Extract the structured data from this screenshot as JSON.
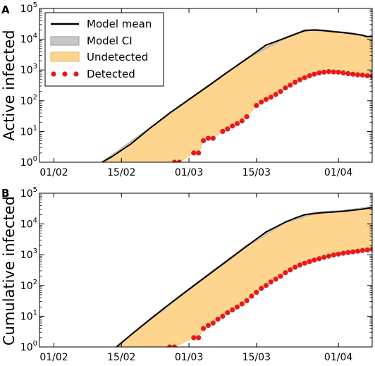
{
  "colors": {
    "mean": "#000000",
    "ci": "#c8c8c8",
    "undetected": "#fdd58e",
    "detected": "#e41a1c"
  },
  "legend": [
    {
      "label": "Model mean",
      "style": "line"
    },
    {
      "label": "Model CI",
      "style": "band"
    },
    {
      "label": "Undetected",
      "style": "fill"
    },
    {
      "label": "Detected",
      "style": "dots"
    }
  ],
  "chart_data": [
    {
      "panel": "A",
      "type": "area",
      "ylabel": "Active infected",
      "xticks": [
        "01/02",
        "15/02",
        "01/03",
        "15/03",
        "01/04"
      ],
      "xtick_days": [
        0,
        14,
        28,
        42,
        59
      ],
      "xlim_days": [
        -3,
        66
      ],
      "yscale": "log",
      "ylim": [
        1,
        100000
      ],
      "ytick_labels": [
        "10^0",
        "10^1",
        "10^2",
        "10^3",
        "10^4",
        "10^5"
      ],
      "model_mean": {
        "x_days": [
          10,
          12,
          16,
          20,
          24,
          28,
          32,
          36,
          40,
          44,
          48,
          50,
          52,
          54,
          56,
          58,
          60,
          62,
          64,
          65,
          66
        ],
        "y": [
          1,
          1.5,
          4,
          13,
          40,
          110,
          300,
          850,
          2300,
          6500,
          11000,
          14500,
          19000,
          20000,
          19000,
          17500,
          16500,
          15000,
          13500,
          12000,
          12500
        ]
      },
      "model_ci": {
        "x_days": [
          10,
          20,
          30,
          40,
          48,
          52,
          54,
          58,
          62,
          65,
          66
        ],
        "low": [
          1,
          12.5,
          170,
          2250,
          10500,
          18000,
          19000,
          16800,
          14300,
          11400,
          11800
        ],
        "high": [
          1.05,
          13.8,
          195,
          2500,
          11800,
          20500,
          21500,
          18800,
          16000,
          12800,
          13300
        ]
      },
      "detected": {
        "x_days": [
          25,
          26,
          29,
          30,
          31,
          32,
          33,
          35,
          36,
          37,
          38,
          39,
          40,
          42,
          43,
          44,
          45,
          46,
          47,
          48,
          49,
          50,
          51,
          52,
          53,
          54,
          55,
          56,
          57,
          58,
          59,
          60,
          61,
          62,
          63,
          64,
          65,
          66
        ],
        "y": [
          1,
          1,
          2,
          2,
          5,
          6,
          6,
          10,
          12,
          15,
          18,
          22,
          30,
          70,
          90,
          110,
          130,
          160,
          200,
          260,
          320,
          400,
          480,
          560,
          650,
          730,
          800,
          850,
          880,
          860,
          850,
          800,
          760,
          730,
          700,
          680,
          650,
          620
        ]
      }
    },
    {
      "panel": "B",
      "type": "area",
      "ylabel": "Cumulative infected",
      "xticks": [
        "01/02",
        "15/02",
        "01/03",
        "15/03",
        "01/04"
      ],
      "xtick_days": [
        0,
        14,
        28,
        42,
        59
      ],
      "xlim_days": [
        -3,
        66
      ],
      "yscale": "log",
      "ylim": [
        1,
        100000
      ],
      "ytick_labels": [
        "10^0",
        "10^1",
        "10^2",
        "10^3",
        "10^4",
        "10^5"
      ],
      "model_mean": {
        "x_days": [
          13,
          16,
          20,
          24,
          28,
          32,
          36,
          40,
          44,
          48,
          50,
          52,
          54,
          56,
          58,
          60,
          62,
          64,
          66
        ],
        "y": [
          1,
          2.5,
          8,
          25,
          75,
          220,
          650,
          1900,
          5500,
          11500,
          15500,
          20000,
          22000,
          23500,
          24500,
          26000,
          28000,
          30500,
          34000
        ]
      },
      "model_ci": {
        "x_days": [
          13,
          20,
          30,
          40,
          48,
          54,
          60,
          66
        ],
        "low": [
          1,
          7.5,
          120,
          1800,
          11000,
          21000,
          25000,
          32500
        ],
        "high": [
          1.1,
          8.8,
          140,
          2100,
          12500,
          24500,
          28000,
          37500
        ]
      },
      "detected": {
        "x_days": [
          24,
          25,
          29,
          30,
          31,
          32,
          33,
          34,
          35,
          36,
          37,
          38,
          39,
          40,
          41,
          42,
          43,
          44,
          45,
          46,
          47,
          48,
          49,
          50,
          51,
          52,
          53,
          54,
          55,
          56,
          57,
          58,
          59,
          60,
          61,
          62,
          63,
          64,
          65,
          66
        ],
        "y": [
          1,
          1,
          2,
          2,
          4,
          5,
          6,
          8,
          10,
          13,
          16,
          20,
          25,
          32,
          45,
          60,
          80,
          100,
          130,
          160,
          200,
          260,
          320,
          390,
          460,
          530,
          600,
          670,
          740,
          820,
          900,
          980,
          1050,
          1120,
          1180,
          1240,
          1300,
          1370,
          1430,
          1500
        ]
      }
    }
  ]
}
